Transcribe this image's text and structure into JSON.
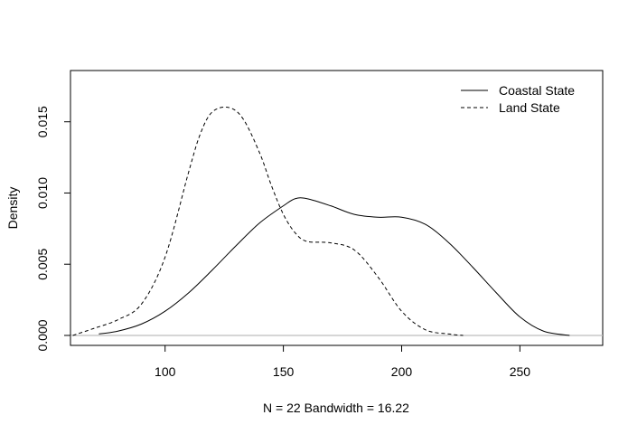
{
  "chart_data": {
    "type": "line",
    "title": "",
    "xlabel": "N = 22   Bandwidth = 16.22",
    "ylabel": "Density",
    "xlim": [
      60,
      285
    ],
    "ylim": [
      -0.0007,
      0.0186
    ],
    "x_ticks": [
      100,
      150,
      200,
      250
    ],
    "x_tick_labels": [
      "100",
      "150",
      "200",
      "250"
    ],
    "y_ticks": [
      0.0,
      0.005,
      0.01,
      0.015
    ],
    "y_tick_labels": [
      "0.000",
      "0.005",
      "0.010",
      "0.015"
    ],
    "baseline": 0,
    "baseline_color": "#bebebe",
    "legend_position": "top-right",
    "grid": false,
    "series": [
      {
        "name": "Coastal State",
        "line_style": "solid",
        "color": "#000000",
        "x": [
          72,
          80,
          90,
          100,
          110,
          120,
          130,
          140,
          150,
          155,
          160,
          170,
          180,
          190,
          200,
          210,
          220,
          230,
          240,
          250,
          260,
          271
        ],
        "y": [
          0.0001,
          0.0003,
          0.0008,
          0.0017,
          0.003,
          0.0046,
          0.0063,
          0.0079,
          0.0091,
          0.0096,
          0.0096,
          0.0091,
          0.0085,
          0.0083,
          0.0083,
          0.0078,
          0.0065,
          0.0048,
          0.003,
          0.0013,
          0.0003,
          0.0
        ]
      },
      {
        "name": "Land State",
        "line_style": "dashed",
        "color": "#000000",
        "x": [
          61,
          70,
          80,
          90,
          100,
          110,
          115,
          120,
          127,
          133,
          140,
          145,
          150,
          155,
          160,
          170,
          180,
          190,
          200,
          210,
          220,
          226
        ],
        "y": [
          0.0,
          0.0005,
          0.0011,
          0.0022,
          0.0055,
          0.0115,
          0.0142,
          0.0157,
          0.016,
          0.0152,
          0.0128,
          0.0105,
          0.0085,
          0.0072,
          0.0066,
          0.0065,
          0.006,
          0.0041,
          0.0017,
          0.0004,
          0.0001,
          0.0
        ]
      }
    ]
  }
}
